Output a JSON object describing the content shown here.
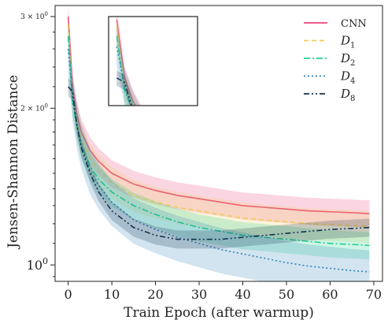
{
  "chart_data": {
    "type": "line",
    "title": "",
    "xlabel": "Train Epoch (after warmup)",
    "ylabel": "Jensen-Shannon Distance",
    "yscale": "log",
    "xlim": [
      -3,
      72
    ],
    "ylim": [
      0.93,
      3.15
    ],
    "xticks": [
      0,
      10,
      20,
      30,
      40,
      50,
      60,
      70
    ],
    "xtick_labels": [
      "0",
      "10",
      "20",
      "30",
      "40",
      "50",
      "60",
      "70"
    ],
    "yticks": [
      1,
      2,
      3
    ],
    "ytick_labels": [
      "10^0",
      "2 × 10^0",
      "3 × 10^0"
    ],
    "grid": false,
    "legend_position": "top-right",
    "x": [
      0,
      1,
      2,
      3,
      5,
      7,
      10,
      15,
      20,
      25,
      30,
      35,
      40,
      45,
      50,
      55,
      60,
      65,
      69
    ],
    "series": [
      {
        "name": "CNN",
        "color": "#e8457a",
        "dash": "solid",
        "shade": 0.06,
        "values": [
          3.0,
          2.2,
          1.95,
          1.8,
          1.66,
          1.58,
          1.5,
          1.43,
          1.39,
          1.36,
          1.34,
          1.32,
          1.3,
          1.29,
          1.28,
          1.27,
          1.265,
          1.26,
          1.255
        ]
      },
      {
        "name": "D_1",
        "color": "#f2cc5a",
        "dash": "dashed",
        "shade": 0.07,
        "values": [
          2.9,
          2.1,
          1.9,
          1.75,
          1.6,
          1.52,
          1.44,
          1.36,
          1.32,
          1.29,
          1.27,
          1.25,
          1.23,
          1.22,
          1.21,
          1.2,
          1.195,
          1.19,
          1.185
        ]
      },
      {
        "name": "D_2",
        "color": "#1fd08b",
        "dash": "dashdot",
        "shade": 0.06,
        "values": [
          2.75,
          2.05,
          1.85,
          1.7,
          1.55,
          1.46,
          1.38,
          1.3,
          1.25,
          1.21,
          1.18,
          1.16,
          1.14,
          1.13,
          1.12,
          1.11,
          1.1,
          1.095,
          1.09
        ]
      },
      {
        "name": "D_4",
        "color": "#2f84b8",
        "dash": "dotted",
        "shade": 0.1,
        "values": [
          2.6,
          2.1,
          1.86,
          1.7,
          1.52,
          1.42,
          1.32,
          1.22,
          1.17,
          1.13,
          1.1,
          1.07,
          1.05,
          1.03,
          1.01,
          0.995,
          0.985,
          0.975,
          0.97
        ]
      },
      {
        "name": "D_8",
        "color": "#12334d",
        "dash": "dashdotdot",
        "shade": 0.04,
        "values": [
          2.2,
          2.15,
          1.85,
          1.68,
          1.5,
          1.38,
          1.27,
          1.18,
          1.14,
          1.12,
          1.12,
          1.12,
          1.13,
          1.14,
          1.15,
          1.16,
          1.17,
          1.175,
          1.18
        ]
      }
    ],
    "inset": {
      "xlim": [
        -1,
        10
      ],
      "ylim": [
        1.9,
        3.05
      ],
      "show_ticks": false
    }
  }
}
